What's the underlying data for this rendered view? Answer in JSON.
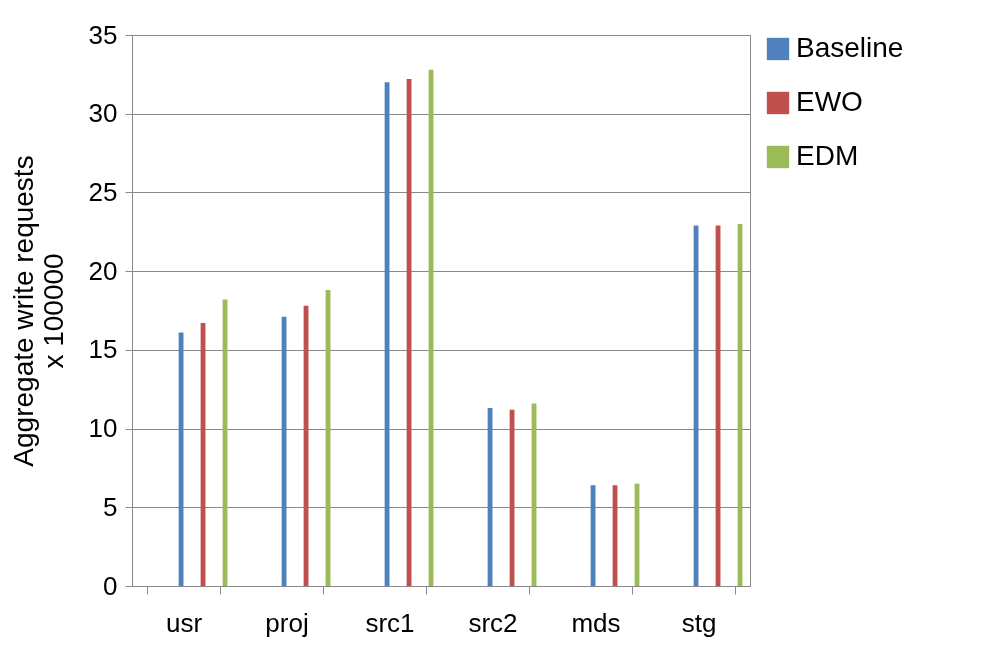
{
  "chart_data": {
    "type": "bar",
    "ylabel": "Aggregate write requests\nx 100000",
    "categories": [
      "usr",
      "proj",
      "src1",
      "src2",
      "mds",
      "stg"
    ],
    "series": [
      {
        "name": "Baseline",
        "color": "#4f81bd",
        "values": [
          16.1,
          17.1,
          32.0,
          11.3,
          6.4,
          22.9
        ]
      },
      {
        "name": "EWO",
        "color": "#c0504d",
        "values": [
          16.7,
          17.8,
          32.2,
          11.2,
          6.4,
          22.9
        ]
      },
      {
        "name": "EDM",
        "color": "#9bbb59",
        "values": [
          18.2,
          18.8,
          32.8,
          11.6,
          6.5,
          23.0
        ]
      }
    ],
    "ylim": [
      0,
      35
    ],
    "yticks": [
      0,
      5,
      10,
      15,
      20,
      25,
      30,
      35
    ],
    "grid": "y",
    "legend": "right"
  }
}
